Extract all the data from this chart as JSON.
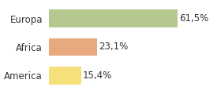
{
  "categories": [
    "America",
    "Africa",
    "Europa"
  ],
  "values": [
    15.4,
    23.1,
    61.5
  ],
  "labels": [
    "15,4%",
    "23,1%",
    "61,5%"
  ],
  "bar_colors": [
    "#f5e07a",
    "#e8a97e",
    "#b5c98e"
  ],
  "background_color": "#ffffff",
  "xlim": [
    0,
    80
  ],
  "bar_height": 0.62,
  "label_fontsize": 8.5,
  "tick_fontsize": 8.5
}
